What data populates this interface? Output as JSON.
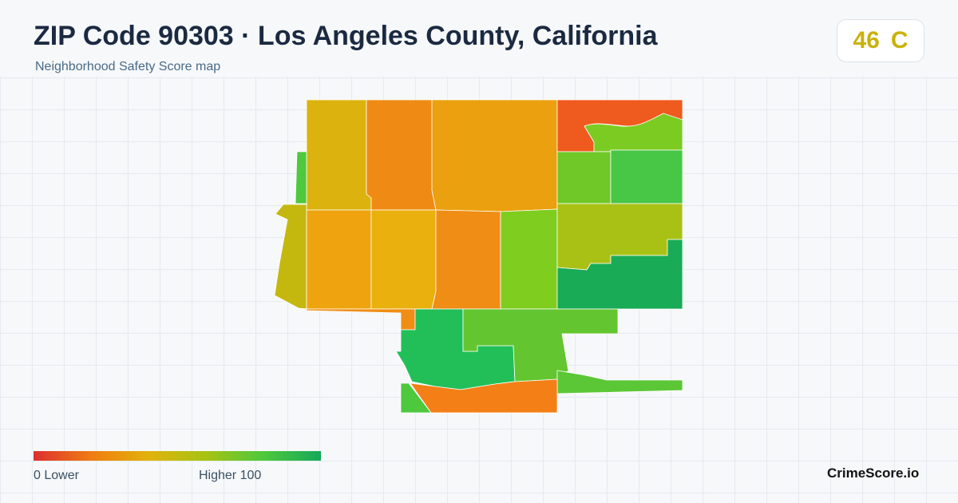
{
  "header": {
    "title": "ZIP Code 90303 · Los Angeles County, California",
    "subtitle": "Neighborhood Safety Score map"
  },
  "badge": {
    "score": "46",
    "grade": "C",
    "color": "#c9b20a"
  },
  "legend": {
    "low_label": "0  Lower",
    "high_label": "Higher  100",
    "gradient_colors": [
      "#dc2f2f",
      "#f07c12",
      "#e2b20c",
      "#a6c313",
      "#4ec83c",
      "#16a85a"
    ]
  },
  "footer": {
    "brand": "CrimeScore.io"
  },
  "map": {
    "regions": [
      {
        "name": "region-nw-1",
        "color": "#dcb30e"
      },
      {
        "name": "region-nw-2",
        "color": "#ef8b14"
      },
      {
        "name": "region-n-center",
        "color": "#eba00f"
      },
      {
        "name": "region-ne-red",
        "color": "#ef5a1e"
      },
      {
        "name": "region-ne-green-strip",
        "color": "#7ccb22"
      },
      {
        "name": "region-e-1",
        "color": "#6fc728"
      },
      {
        "name": "region-e-2",
        "color": "#48c646"
      },
      {
        "name": "region-w-sliver",
        "color": "#4ec83c"
      },
      {
        "name": "region-w-olive",
        "color": "#c4b80f"
      },
      {
        "name": "region-w-1",
        "color": "#efa40f"
      },
      {
        "name": "region-w-2",
        "color": "#e9b00e"
      },
      {
        "name": "region-center-orange",
        "color": "#ef8d14"
      },
      {
        "name": "region-center-green",
        "color": "#7ecd1f"
      },
      {
        "name": "region-e-olive",
        "color": "#a9c115"
      },
      {
        "name": "region-se-green",
        "color": "#19ab55"
      },
      {
        "name": "region-s-1",
        "color": "#22bf58"
      },
      {
        "name": "region-s-2",
        "color": "#63c630"
      },
      {
        "name": "region-s-strip",
        "color": "#5cc736"
      },
      {
        "name": "region-sw-small",
        "color": "#4ec83c"
      },
      {
        "name": "region-s-orange",
        "color": "#f47f17"
      }
    ]
  }
}
